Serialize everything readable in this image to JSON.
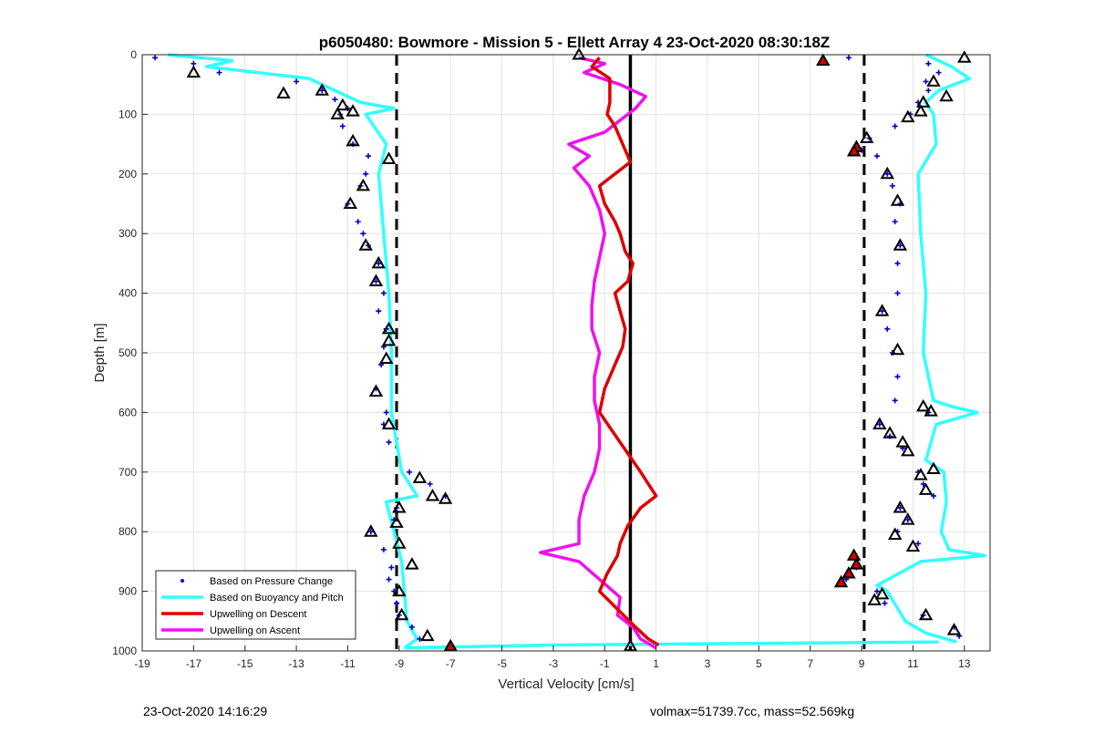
{
  "chart_data": {
    "type": "scatter",
    "title": "p6050480: Bowmore - Mission 5 - Ellett Array 4 23-Oct-2020 08:30:18Z",
    "xlabel": "Vertical Velocity [cm/s]",
    "ylabel": "Depth [m]",
    "xlim": [
      -19,
      14
    ],
    "ylim": [
      1000,
      0
    ],
    "y_reversed": true,
    "grid": true,
    "xticks": [
      -19,
      -17,
      -15,
      -13,
      -11,
      -9,
      -7,
      -5,
      -3,
      -1,
      1,
      3,
      5,
      7,
      9,
      11,
      13
    ],
    "yticks": [
      0,
      100,
      200,
      300,
      400,
      500,
      600,
      700,
      800,
      900,
      1000
    ],
    "legend_position": "bottom-left",
    "reference_lines": [
      {
        "x": -9.1,
        "style": "dashed",
        "color": "#000000"
      },
      {
        "x": 0,
        "style": "solid",
        "color": "#000000"
      },
      {
        "x": 9.1,
        "style": "dashed",
        "color": "#000000"
      }
    ],
    "series": [
      {
        "name": "Based on Pressure Change",
        "kind": "points",
        "color": "#0000cc",
        "groups": [
          {
            "depth": [
              5,
              15,
              30,
              45,
              60,
              75,
              90,
              100,
              120,
              150,
              170,
              200,
              220,
              250,
              280,
              300,
              320,
              350,
              380,
              400,
              430,
              460,
              490,
              520,
              560,
              600,
              620,
              650,
              700,
              720,
              740,
              760,
              780,
              800,
              830,
              860,
              880,
              900,
              920,
              940,
              960,
              980,
              995
            ],
            "x": [
              -18.5,
              -17,
              -16,
              -13,
              -12,
              -11.5,
              -11,
              -11.3,
              -11.2,
              -10.8,
              -10.2,
              -10.3,
              -10.5,
              -11,
              -10.6,
              -10.4,
              -10.2,
              -9.8,
              -9.9,
              -9.6,
              -9.8,
              -9.5,
              -9.6,
              -9.7,
              -9.9,
              -9.5,
              -9.6,
              -9.4,
              -8.6,
              -7.8,
              -7.2,
              -9.1,
              -9.2,
              -10.1,
              -9.6,
              -9.3,
              -9.4,
              -9.2,
              -9.1,
              -9.0,
              -8.5,
              -8.2,
              -7.0
            ]
          },
          {
            "depth": [
              5,
              15,
              30,
              45,
              60,
              80,
              100,
              120,
              140,
              160,
              170,
              200,
              220,
              250,
              280,
              320,
              350,
              400,
              430,
              460,
              500,
              540,
              580,
              600,
              620,
              640,
              660,
              700,
              720,
              740,
              760,
              780,
              800,
              820,
              840,
              860,
              880,
              900,
              920,
              940,
              960,
              975
            ],
            "x": [
              8.5,
              11.6,
              12,
              11.5,
              11.6,
              11.2,
              10.9,
              10.3,
              9.3,
              9,
              9.6,
              10,
              10.2,
              10.5,
              10.3,
              10.5,
              10.4,
              10.4,
              9.8,
              10,
              10.2,
              10.4,
              10.3,
              11.6,
              9.7,
              10.1,
              10.6,
              11.2,
              11.4,
              11.8,
              10.5,
              10.8,
              10.4,
              11.2,
              8.7,
              8.8,
              8.4,
              9.6,
              9.9,
              11.4,
              12.6,
              12.8
            ]
          }
        ]
      },
      {
        "name": "Based on Buoyancy and Pitch",
        "kind": "line",
        "color": "#33ffff",
        "groups": [
          {
            "depth": [
              0,
              10,
              20,
              30,
              40,
              50,
              60,
              70,
              80,
              90,
              100,
              150,
              200,
              300,
              400,
              500,
              600,
              700,
              740,
              750,
              800,
              850,
              900,
              950,
              980,
              995
            ],
            "x": [
              -18,
              -15.5,
              -16.5,
              -14.5,
              -12.5,
              -12,
              -11.5,
              -11,
              -10.5,
              -9.2,
              -10.3,
              -9.5,
              -9.8,
              -9.6,
              -9.4,
              -9.3,
              -9.3,
              -8.9,
              -8.3,
              -9.5,
              -9.2,
              -8.9,
              -8.8,
              -8.7,
              -8.3,
              -8.8
            ]
          },
          {
            "depth": [
              995,
              990,
              985
            ],
            "x": [
              -8.8,
              -3,
              12
            ]
          },
          {
            "depth": [
              0,
              20,
              40,
              60,
              80,
              100,
              150,
              200,
              300,
              400,
              500,
              580,
              590,
              600,
              610,
              620,
              680,
              700,
              750,
              800,
              830,
              840,
              850,
              890,
              900,
              950,
              970,
              985
            ],
            "x": [
              11.5,
              12.5,
              13.2,
              12.0,
              11.5,
              11.8,
              11.9,
              11.2,
              11.3,
              11.5,
              11.4,
              11.8,
              12.5,
              13.5,
              12.7,
              11.9,
              11.5,
              12.2,
              12.3,
              12.1,
              12.4,
              13.8,
              11.3,
              9.6,
              10.0,
              10.7,
              11.5,
              12.7
            ]
          }
        ]
      },
      {
        "name": "Upwelling on Descent",
        "kind": "line",
        "color": "#dd0000",
        "groups": [
          {
            "depth": [
              5,
              20,
              40,
              60,
              80,
              100,
              120,
              150,
              180,
              200,
              220,
              250,
              280,
              300,
              330,
              350,
              380,
              400,
              430,
              460,
              490,
              520,
              560,
              600,
              650,
              700,
              740,
              760,
              790,
              820,
              840,
              870,
              900,
              930,
              960,
              980,
              990
            ],
            "x": [
              -1.2,
              -1.5,
              -0.8,
              -0.8,
              -0.8,
              -0.9,
              -0.6,
              -0.3,
              0.0,
              -0.6,
              -1.2,
              -1.0,
              -0.6,
              -0.4,
              -0.2,
              0.1,
              -0.1,
              -0.6,
              -0.4,
              -0.2,
              -0.3,
              -0.6,
              -1.0,
              -1.2,
              -0.4,
              0.4,
              1.0,
              0.4,
              -0.1,
              -0.4,
              -0.5,
              -0.9,
              -1.2,
              -0.5,
              0.2,
              0.7,
              1.1
            ]
          }
        ]
      },
      {
        "name": "Upwelling on Ascent",
        "kind": "line",
        "color": "#ee11ee",
        "groups": [
          {
            "depth": [
              5,
              15,
              30,
              50,
              70,
              90,
              110,
              130,
              150,
              170,
              190,
              220,
              260,
              300,
              340,
              380,
              420,
              460,
              500,
              540,
              580,
              620,
              660,
              700,
              740,
              780,
              820,
              835,
              850,
              880,
              910,
              940,
              960,
              980,
              995
            ],
            "x": [
              -2.0,
              -1.0,
              -1.8,
              -0.4,
              0.6,
              0.2,
              -0.4,
              -1.0,
              -2.4,
              -1.6,
              -2.2,
              -1.6,
              -1.2,
              -1.0,
              -1.2,
              -1.4,
              -1.5,
              -1.5,
              -1.2,
              -1.4,
              -1.4,
              -1.2,
              -1.2,
              -1.4,
              -1.8,
              -2.0,
              -2.0,
              -3.5,
              -2.0,
              -1.2,
              -0.4,
              -0.5,
              0.1,
              0.4,
              1.0
            ]
          }
        ]
      }
    ],
    "markers": [
      {
        "x": -17.0,
        "depth": 30,
        "edge": "#000000"
      },
      {
        "x": -13.5,
        "depth": 65,
        "edge": "#000000"
      },
      {
        "x": -12.0,
        "depth": 60,
        "edge": "#000000"
      },
      {
        "x": -11.2,
        "depth": 85,
        "edge": "#000000"
      },
      {
        "x": -10.8,
        "depth": 95,
        "edge": "#000000"
      },
      {
        "x": -11.4,
        "depth": 100,
        "edge": "#000000"
      },
      {
        "x": -10.8,
        "depth": 145,
        "edge": "#000000"
      },
      {
        "x": -9.4,
        "depth": 175,
        "edge": "#000000"
      },
      {
        "x": -10.4,
        "depth": 220,
        "edge": "#000000"
      },
      {
        "x": -10.9,
        "depth": 250,
        "edge": "#000000"
      },
      {
        "x": -10.3,
        "depth": 320,
        "edge": "#000000"
      },
      {
        "x": -9.8,
        "depth": 350,
        "edge": "#000000"
      },
      {
        "x": -9.9,
        "depth": 380,
        "edge": "#000000"
      },
      {
        "x": -9.4,
        "depth": 460,
        "edge": "#000000"
      },
      {
        "x": -9.4,
        "depth": 480,
        "edge": "#000000"
      },
      {
        "x": -9.5,
        "depth": 510,
        "edge": "#000000"
      },
      {
        "x": -9.9,
        "depth": 565,
        "edge": "#000000"
      },
      {
        "x": -9.4,
        "depth": 620,
        "edge": "#000000"
      },
      {
        "x": -8.2,
        "depth": 710,
        "edge": "#000000"
      },
      {
        "x": -7.7,
        "depth": 740,
        "edge": "#000000"
      },
      {
        "x": -7.2,
        "depth": 745,
        "edge": "#000000"
      },
      {
        "x": -9.0,
        "depth": 760,
        "edge": "#000000"
      },
      {
        "x": -9.1,
        "depth": 785,
        "edge": "#000000"
      },
      {
        "x": -10.1,
        "depth": 800,
        "edge": "#000000"
      },
      {
        "x": -9.0,
        "depth": 820,
        "edge": "#000000"
      },
      {
        "x": -8.5,
        "depth": 855,
        "edge": "#000000"
      },
      {
        "x": -9.0,
        "depth": 900,
        "edge": "#000000"
      },
      {
        "x": -8.9,
        "depth": 940,
        "edge": "#000000"
      },
      {
        "x": -7.9,
        "depth": 975,
        "edge": "#000000"
      },
      {
        "x": -7.0,
        "depth": 992,
        "edge": "#dd0000"
      },
      {
        "x": -2.0,
        "depth": 0,
        "edge": "#000000"
      },
      {
        "x": 0.0,
        "depth": 992,
        "edge": "#000000"
      },
      {
        "x": 7.5,
        "depth": 10,
        "edge": "#dd0000"
      },
      {
        "x": 13.0,
        "depth": 5,
        "edge": "#000000"
      },
      {
        "x": 11.8,
        "depth": 45,
        "edge": "#000000"
      },
      {
        "x": 12.3,
        "depth": 70,
        "edge": "#000000"
      },
      {
        "x": 11.4,
        "depth": 80,
        "edge": "#000000"
      },
      {
        "x": 11.3,
        "depth": 95,
        "edge": "#000000"
      },
      {
        "x": 10.8,
        "depth": 105,
        "edge": "#000000"
      },
      {
        "x": 9.2,
        "depth": 140,
        "edge": "#000000"
      },
      {
        "x": 8.8,
        "depth": 155,
        "edge": "#dd0000"
      },
      {
        "x": 8.7,
        "depth": 162,
        "edge": "#dd0000"
      },
      {
        "x": 10.0,
        "depth": 200,
        "edge": "#000000"
      },
      {
        "x": 10.4,
        "depth": 245,
        "edge": "#000000"
      },
      {
        "x": 10.5,
        "depth": 320,
        "edge": "#000000"
      },
      {
        "x": 9.8,
        "depth": 430,
        "edge": "#000000"
      },
      {
        "x": 10.4,
        "depth": 495,
        "edge": "#000000"
      },
      {
        "x": 11.4,
        "depth": 590,
        "edge": "#000000"
      },
      {
        "x": 11.7,
        "depth": 598,
        "edge": "#000000"
      },
      {
        "x": 9.7,
        "depth": 620,
        "edge": "#000000"
      },
      {
        "x": 10.1,
        "depth": 635,
        "edge": "#000000"
      },
      {
        "x": 10.6,
        "depth": 650,
        "edge": "#000000"
      },
      {
        "x": 10.8,
        "depth": 665,
        "edge": "#000000"
      },
      {
        "x": 11.8,
        "depth": 695,
        "edge": "#000000"
      },
      {
        "x": 11.3,
        "depth": 705,
        "edge": "#000000"
      },
      {
        "x": 11.5,
        "depth": 730,
        "edge": "#000000"
      },
      {
        "x": 10.5,
        "depth": 760,
        "edge": "#000000"
      },
      {
        "x": 10.8,
        "depth": 780,
        "edge": "#000000"
      },
      {
        "x": 10.3,
        "depth": 805,
        "edge": "#000000"
      },
      {
        "x": 11.0,
        "depth": 825,
        "edge": "#000000"
      },
      {
        "x": 8.7,
        "depth": 840,
        "edge": "#dd0000"
      },
      {
        "x": 8.8,
        "depth": 855,
        "edge": "#dd0000"
      },
      {
        "x": 8.5,
        "depth": 870,
        "edge": "#dd0000"
      },
      {
        "x": 8.2,
        "depth": 885,
        "edge": "#dd0000"
      },
      {
        "x": 9.8,
        "depth": 905,
        "edge": "#000000"
      },
      {
        "x": 9.5,
        "depth": 915,
        "edge": "#000000"
      },
      {
        "x": 11.5,
        "depth": 940,
        "edge": "#000000"
      },
      {
        "x": 12.6,
        "depth": 965,
        "edge": "#000000"
      }
    ]
  },
  "footer": {
    "timestamp": "23-Oct-2020 14:16:29",
    "stats": "volmax=51739.7cc, mass=52.569kg"
  }
}
